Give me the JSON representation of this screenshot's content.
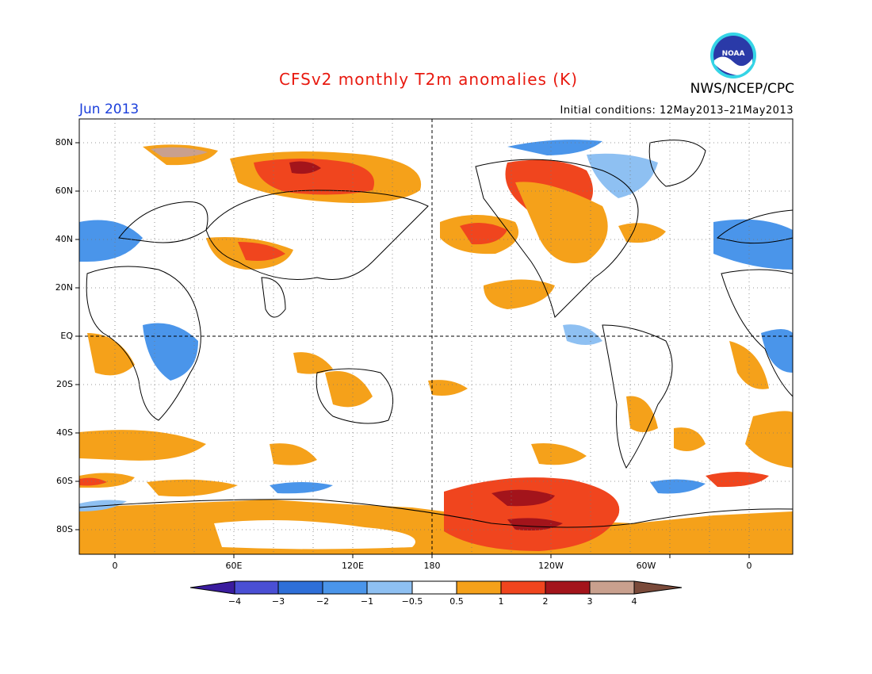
{
  "header": {
    "title": "CFSv2 monthly T2m anomalies (K)",
    "month": "Jun 2013",
    "initial_conditions": "Initial conditions: 12May2013–21May2013",
    "agency": "NWS/NCEP/CPC",
    "logo_text": "NOAA"
  },
  "axes": {
    "lat_labels": [
      "80N",
      "60N",
      "40N",
      "20N",
      "EQ",
      "20S",
      "40S",
      "60S",
      "80S"
    ],
    "lon_labels": [
      "0",
      "60E",
      "120E",
      "180",
      "120W",
      "60W",
      "0"
    ]
  },
  "colorbar": {
    "labels": [
      "−4",
      "−3",
      "−2",
      "−1",
      "−0.5",
      "0.5",
      "1",
      "2",
      "3",
      "4"
    ],
    "colors": [
      "#3a1c9e",
      "#4a4fd4",
      "#2e6fd8",
      "#4a95ea",
      "#8ec0f2",
      "#ffffff",
      "#f5a11a",
      "#f0451e",
      "#a3141b",
      "#c9a08e",
      "#7a4a3a"
    ]
  },
  "legend_meaning": {
    "negative": "cold anomaly (blue shades)",
    "positive": "warm anomaly (orange/red shades)"
  }
}
